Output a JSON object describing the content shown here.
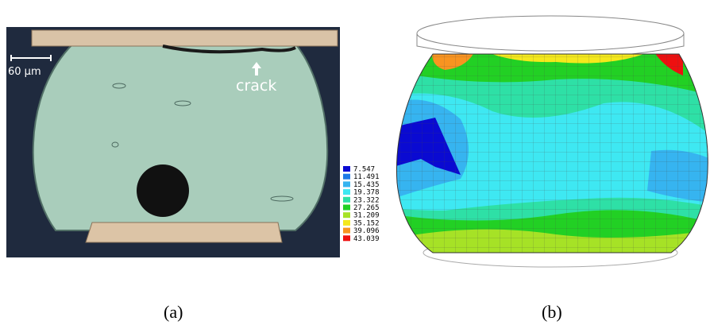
{
  "panel_a": {
    "scale_label": "60 μm",
    "annotation": "crack",
    "caption": "(a)"
  },
  "panel_b": {
    "caption": "(b)",
    "legend": [
      {
        "value": 7.547,
        "color": "#0a0ad2"
      },
      {
        "value": 11.491,
        "color": "#1e7ae6"
      },
      {
        "value": 15.435,
        "color": "#36b4f0"
      },
      {
        "value": 19.378,
        "color": "#3ee8f2"
      },
      {
        "value": 23.322,
        "color": "#2ee0a6"
      },
      {
        "value": 27.265,
        "color": "#22d024"
      },
      {
        "value": 31.209,
        "color": "#a6e226"
      },
      {
        "value": 35.152,
        "color": "#f4e81c"
      },
      {
        "value": 39.096,
        "color": "#f89420"
      },
      {
        "value": 43.039,
        "color": "#ee1010"
      }
    ]
  }
}
